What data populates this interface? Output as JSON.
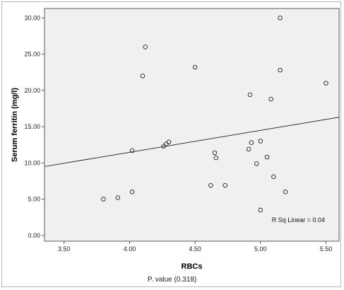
{
  "chart_data": {
    "type": "scatter",
    "xlabel": "RBCs",
    "ylabel": "Serum ferritin (mg/l)",
    "xlim": [
      3.35,
      5.6
    ],
    "ylim": [
      -0.8,
      31.3
    ],
    "x_ticks": [
      "3.50",
      "4.00",
      "4.50",
      "5.00",
      "5.50"
    ],
    "y_ticks": [
      "0.00",
      "5.00",
      "10.00",
      "15.00",
      "20.00",
      "25.00",
      "30.00"
    ],
    "grid": false,
    "points": [
      {
        "x": 3.8,
        "y": 5.0
      },
      {
        "x": 3.91,
        "y": 5.2
      },
      {
        "x": 4.02,
        "y": 6.0
      },
      {
        "x": 4.02,
        "y": 11.7
      },
      {
        "x": 4.1,
        "y": 22.0
      },
      {
        "x": 4.12,
        "y": 26.0
      },
      {
        "x": 4.26,
        "y": 12.3
      },
      {
        "x": 4.28,
        "y": 12.6
      },
      {
        "x": 4.3,
        "y": 12.9
      },
      {
        "x": 4.5,
        "y": 23.2
      },
      {
        "x": 4.62,
        "y": 6.9
      },
      {
        "x": 4.65,
        "y": 11.4
      },
      {
        "x": 4.66,
        "y": 10.7
      },
      {
        "x": 4.73,
        "y": 6.9
      },
      {
        "x": 4.91,
        "y": 11.9
      },
      {
        "x": 4.92,
        "y": 19.4
      },
      {
        "x": 4.93,
        "y": 12.8
      },
      {
        "x": 4.97,
        "y": 9.9
      },
      {
        "x": 5.0,
        "y": 3.5
      },
      {
        "x": 5.0,
        "y": 13.0
      },
      {
        "x": 5.05,
        "y": 10.8
      },
      {
        "x": 5.08,
        "y": 18.8
      },
      {
        "x": 5.1,
        "y": 8.1
      },
      {
        "x": 5.15,
        "y": 30.0
      },
      {
        "x": 5.15,
        "y": 22.8
      },
      {
        "x": 5.19,
        "y": 6.0
      },
      {
        "x": 5.5,
        "y": 21.0
      }
    ],
    "fit_line": {
      "x": [
        3.35,
        5.6
      ],
      "y": [
        9.5,
        16.3
      ]
    },
    "annotation": "R Sq Linear = 0.04"
  },
  "footer": {
    "text": "P. value (0.318)"
  }
}
